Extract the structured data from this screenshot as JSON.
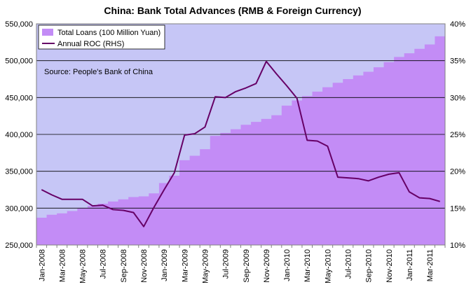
{
  "chart_data": {
    "type": "area",
    "title": "China: Bank Total Advances (RMB & Foreign Currency)",
    "annotation": "Source: People's Bank of China",
    "colors": {
      "plot_background": "#c6c6f6",
      "area_fill": "#c38cf6",
      "line": "#660066",
      "gridline": "#000000"
    },
    "grid": true,
    "legend_placement": "top-left",
    "x": [
      "Jan-2008",
      "Feb-2008",
      "Mar-2008",
      "Apr-2008",
      "May-2008",
      "Jun-2008",
      "Jul-2008",
      "Aug-2008",
      "Sep-2008",
      "Oct-2008",
      "Nov-2008",
      "Dec-2008",
      "Jan-2009",
      "Feb-2009",
      "Mar-2009",
      "Apr-2009",
      "May-2009",
      "Jun-2009",
      "Jul-2009",
      "Aug-2009",
      "Sep-2009",
      "Oct-2009",
      "Nov-2009",
      "Dec-2009",
      "Jan-2010",
      "Feb-2010",
      "Mar-2010",
      "Apr-2010",
      "May-2010",
      "Jun-2010",
      "Jul-2010",
      "Aug-2010",
      "Sep-2010",
      "Oct-2010",
      "Nov-2010",
      "Dec-2010",
      "Jan-2011",
      "Feb-2011",
      "Mar-2011",
      "Apr-2011"
    ],
    "x_tick_labels": [
      "Jan-2008",
      "Mar-2008",
      "May-2008",
      "Jul-2008",
      "Sep-2008",
      "Nov-2008",
      "Jan-2009",
      "Mar-2009",
      "May-2009",
      "Jul-2009",
      "Sep-2009",
      "Nov-2009",
      "Jan-2010",
      "Mar-2010",
      "May-2010",
      "Jul-2010",
      "Sep-2010",
      "Nov-2010",
      "Jan-2011",
      "Mar-2011"
    ],
    "y_left": {
      "ylim": [
        250000,
        550000
      ],
      "ticks": [
        "250,000",
        "300,000",
        "350,000",
        "400,000",
        "450,000",
        "500,000",
        "550,000"
      ]
    },
    "y_right": {
      "ylim": [
        10,
        40
      ],
      "ticks": [
        "10%",
        "15%",
        "20%",
        "25%",
        "30%",
        "35%",
        "40%"
      ]
    },
    "series": [
      {
        "name": "Total Loans (100 Million Yuan)",
        "kind": "area",
        "axis": "left",
        "values": [
          287000,
          291000,
          293000,
          296000,
          300000,
          303000,
          306000,
          309000,
          312000,
          315000,
          316000,
          320000,
          334000,
          344000,
          365000,
          371000,
          380000,
          398000,
          402000,
          407000,
          413000,
          417000,
          421000,
          426000,
          439000,
          446000,
          452000,
          458000,
          464000,
          470000,
          475000,
          480000,
          485000,
          491000,
          498000,
          505000,
          510000,
          516000,
          522000,
          533000
        ]
      },
      {
        "name": "Annual ROC (RHS)",
        "kind": "line",
        "axis": "right",
        "values": [
          17.5,
          16.8,
          16.2,
          16.2,
          16.2,
          15.3,
          15.4,
          14.8,
          14.7,
          14.4,
          12.5,
          15.1,
          17.5,
          19.8,
          24.9,
          25.1,
          26.0,
          30.1,
          30.0,
          30.8,
          31.3,
          31.9,
          34.9,
          33.2,
          31.6,
          29.9,
          24.2,
          24.1,
          23.4,
          19.2,
          19.1,
          19.0,
          18.7,
          19.2,
          19.6,
          19.8,
          17.2,
          16.4,
          16.3,
          15.9
        ]
      }
    ]
  }
}
